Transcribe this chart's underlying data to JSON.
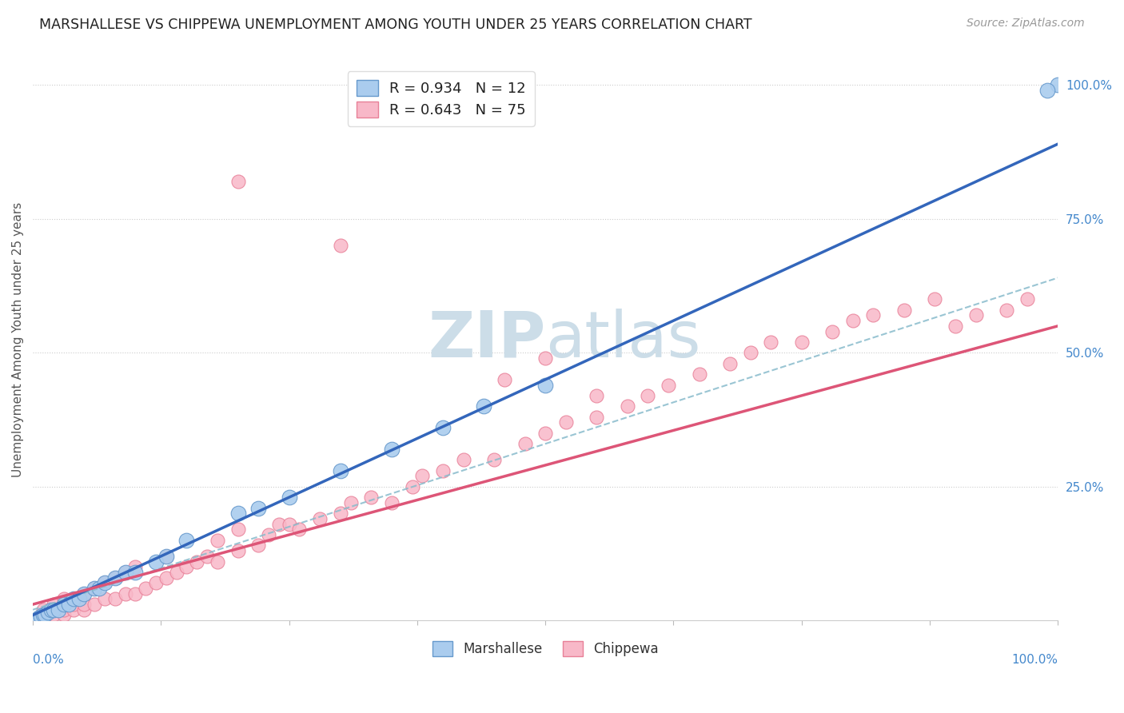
{
  "title": "MARSHALLESE VS CHIPPEWA UNEMPLOYMENT AMONG YOUTH UNDER 25 YEARS CORRELATION CHART",
  "source": "Source: ZipAtlas.com",
  "ylabel": "Unemployment Among Youth under 25 years",
  "series1_name": "Marshallese",
  "series2_name": "Chippewa",
  "series1_color": "#aaccee",
  "series2_color": "#f8b8c8",
  "series1_edge": "#6699cc",
  "series2_edge": "#e88098",
  "reg1_color": "#3366bb",
  "reg2_color": "#dd5577",
  "dashed_color": "#88bbcc",
  "background_color": "#ffffff",
  "grid_color": "#cccccc",
  "title_color": "#222222",
  "axis_label_color": "#4488cc",
  "watermark_color": "#ccdde8",
  "marker_size_marsh": 180,
  "marker_size_chip": 150,
  "reg1_slope": 0.88,
  "reg1_intercept": 0.01,
  "reg2_slope": 0.52,
  "reg2_intercept": 0.03,
  "dash_slope": 0.62,
  "dash_intercept": 0.02,
  "xlim": [
    0,
    1.0
  ],
  "ylim": [
    0,
    1.05
  ],
  "marshallese_x": [
    0.005,
    0.008,
    0.01,
    0.012,
    0.015,
    0.018,
    0.02,
    0.025,
    0.03,
    0.035,
    0.04,
    0.045,
    0.05,
    0.06,
    0.065,
    0.07,
    0.08,
    0.09,
    0.1,
    0.12,
    0.13,
    0.15,
    0.2,
    0.22,
    0.25,
    0.3,
    0.35,
    0.4,
    0.44,
    0.5,
    1.0,
    0.99
  ],
  "marshallese_y": [
    0.005,
    0.008,
    0.01,
    0.01,
    0.015,
    0.02,
    0.02,
    0.02,
    0.03,
    0.03,
    0.04,
    0.04,
    0.05,
    0.06,
    0.06,
    0.07,
    0.08,
    0.09,
    0.09,
    0.11,
    0.12,
    0.15,
    0.2,
    0.21,
    0.23,
    0.28,
    0.32,
    0.36,
    0.4,
    0.44,
    1.0,
    0.99
  ],
  "chippewa_x": [
    0.01,
    0.01,
    0.02,
    0.02,
    0.03,
    0.03,
    0.03,
    0.04,
    0.04,
    0.05,
    0.05,
    0.05,
    0.06,
    0.06,
    0.07,
    0.07,
    0.08,
    0.08,
    0.09,
    0.09,
    0.1,
    0.1,
    0.11,
    0.12,
    0.13,
    0.13,
    0.14,
    0.15,
    0.16,
    0.17,
    0.18,
    0.18,
    0.2,
    0.2,
    0.22,
    0.23,
    0.24,
    0.25,
    0.26,
    0.28,
    0.3,
    0.31,
    0.33,
    0.35,
    0.37,
    0.38,
    0.4,
    0.42,
    0.45,
    0.48,
    0.5,
    0.52,
    0.55,
    0.58,
    0.6,
    0.62,
    0.65,
    0.68,
    0.7,
    0.72,
    0.75,
    0.78,
    0.8,
    0.82,
    0.85,
    0.88,
    0.9,
    0.92,
    0.95,
    0.97,
    0.2,
    0.3,
    0.46,
    0.5,
    0.55
  ],
  "chippewa_y": [
    0.01,
    0.02,
    0.01,
    0.03,
    0.01,
    0.02,
    0.04,
    0.02,
    0.03,
    0.02,
    0.03,
    0.05,
    0.03,
    0.06,
    0.04,
    0.07,
    0.04,
    0.08,
    0.05,
    0.09,
    0.05,
    0.1,
    0.06,
    0.07,
    0.08,
    0.12,
    0.09,
    0.1,
    0.11,
    0.12,
    0.11,
    0.15,
    0.13,
    0.17,
    0.14,
    0.16,
    0.18,
    0.18,
    0.17,
    0.19,
    0.2,
    0.22,
    0.23,
    0.22,
    0.25,
    0.27,
    0.28,
    0.3,
    0.3,
    0.33,
    0.35,
    0.37,
    0.38,
    0.4,
    0.42,
    0.44,
    0.46,
    0.48,
    0.5,
    0.52,
    0.52,
    0.54,
    0.56,
    0.57,
    0.58,
    0.6,
    0.55,
    0.57,
    0.58,
    0.6,
    0.82,
    0.7,
    0.45,
    0.49,
    0.42
  ]
}
